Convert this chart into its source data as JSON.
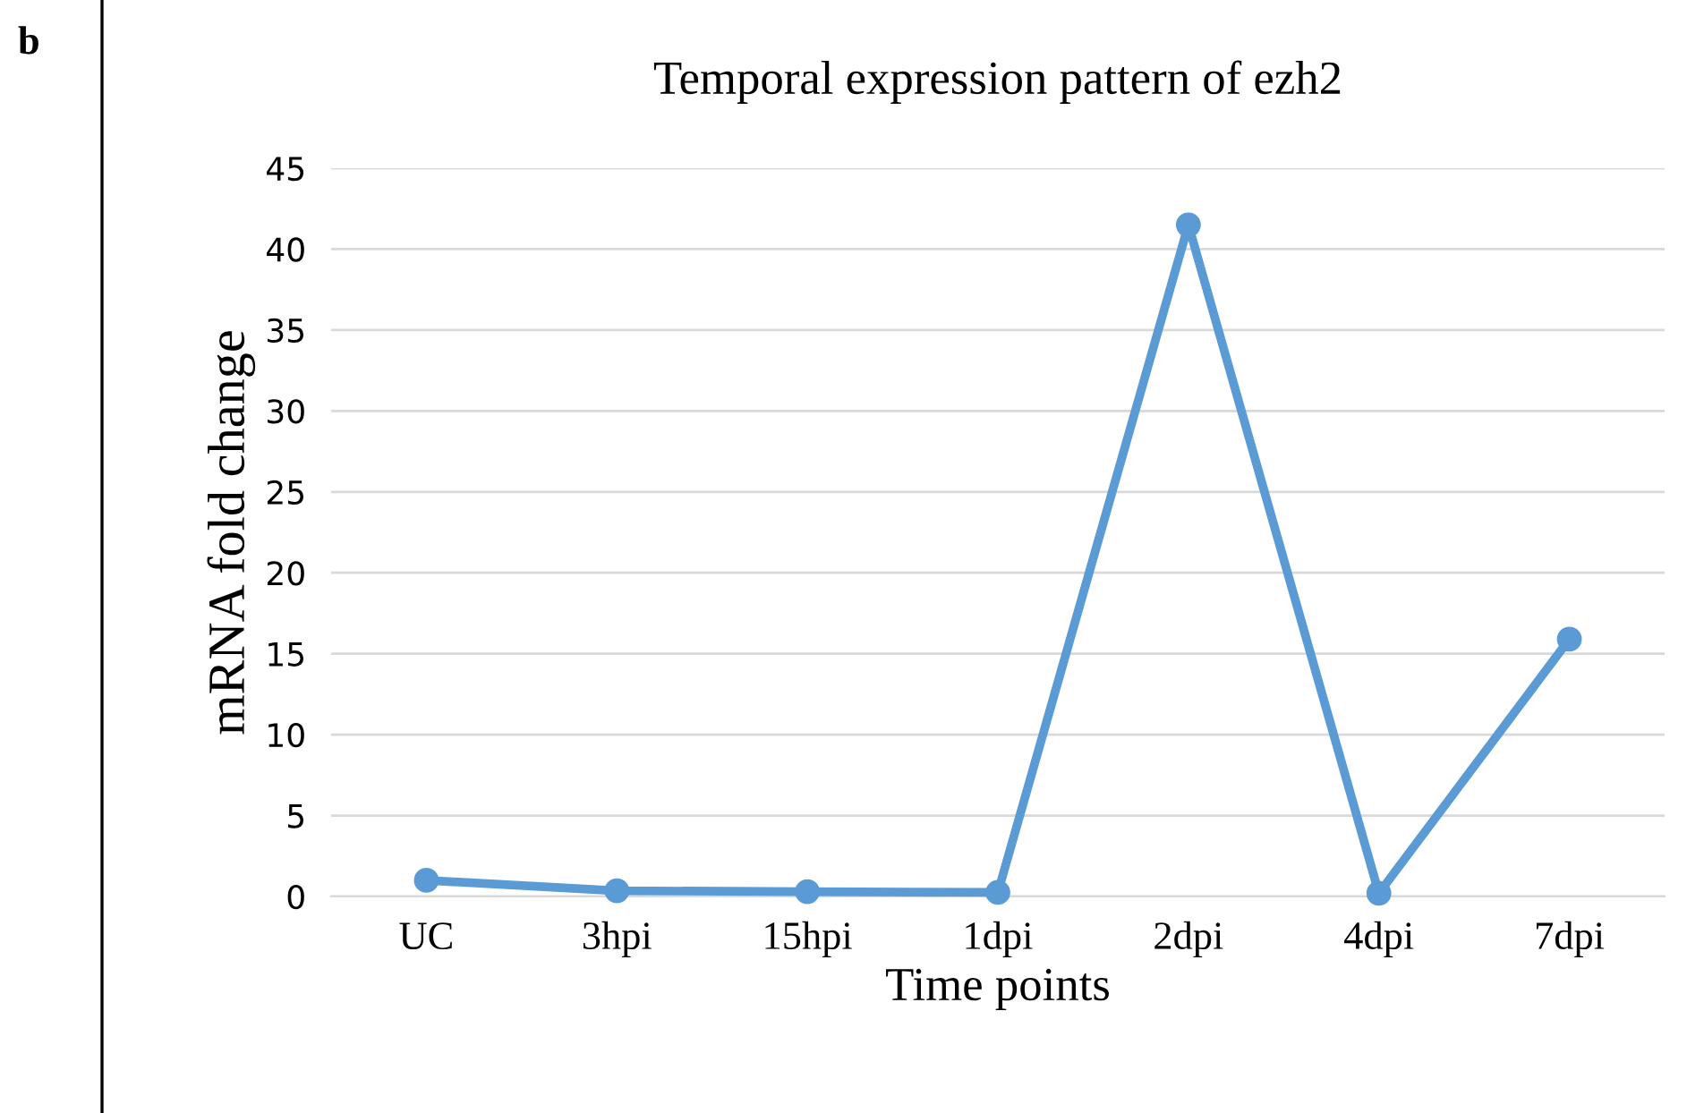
{
  "chart_data": {
    "type": "line",
    "title": "Temporal expression pattern of ezh2",
    "xlabel": "Time points",
    "ylabel": "mRNA fold change",
    "annotations": [
      "b"
    ],
    "categories": [
      "UC",
      "3hpi",
      "15hpi",
      "1dpi",
      "2dpi",
      "4dpi",
      "7dpi"
    ],
    "series": [
      {
        "color": "#5b9bd5",
        "values": [
          1.0,
          0.35,
          0.3,
          0.25,
          41.5,
          0.2,
          15.9
        ]
      }
    ],
    "ylim": [
      0,
      45
    ],
    "yticks": [
      0,
      5,
      10,
      15,
      20,
      25,
      30,
      35,
      40,
      45
    ],
    "grid": "y",
    "legend": false,
    "marker": "circle",
    "line_style": "solid"
  }
}
